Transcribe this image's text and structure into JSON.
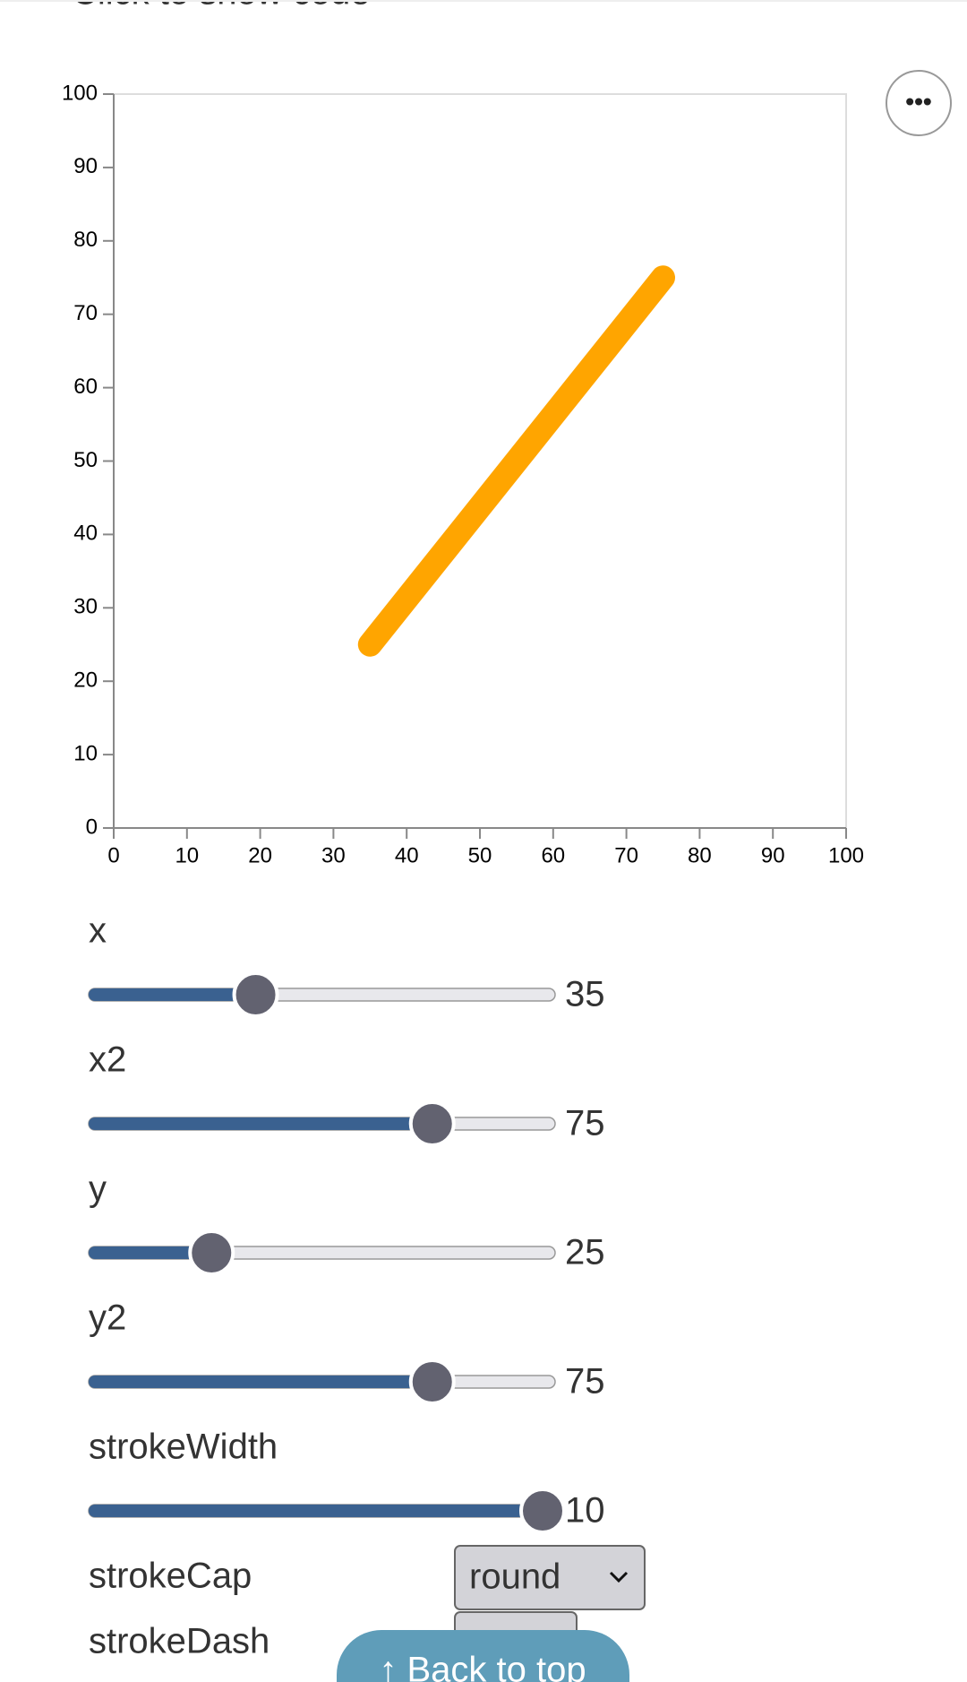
{
  "header": {
    "code_link": "Click to show code"
  },
  "menu_button": "•••",
  "chart_data": {
    "type": "rule",
    "x": 35,
    "x2": 75,
    "y": 25,
    "y2": 75,
    "color": "#ffa500",
    "strokeWidth": 10,
    "strokeCap": "round",
    "xlim": [
      0,
      100
    ],
    "ylim": [
      0,
      100
    ],
    "xticks": [
      0,
      10,
      20,
      30,
      40,
      50,
      60,
      70,
      80,
      90,
      100
    ],
    "yticks": [
      0,
      10,
      20,
      30,
      40,
      50,
      60,
      70,
      80,
      90,
      100
    ]
  },
  "controls": [
    {
      "label": "x",
      "min": 0,
      "max": 100
    },
    {
      "label": "x2",
      "min": 0,
      "max": 100
    },
    {
      "label": "y",
      "min": 0,
      "max": 100
    },
    {
      "label": "y2",
      "min": 0,
      "max": 100
    },
    {
      "label": "strokeWidth",
      "min": 0,
      "max": 10
    }
  ],
  "selects": [
    {
      "label": "strokeCap"
    },
    {
      "label": "strokeDash"
    }
  ],
  "back_to_top": "↑ Back to top"
}
